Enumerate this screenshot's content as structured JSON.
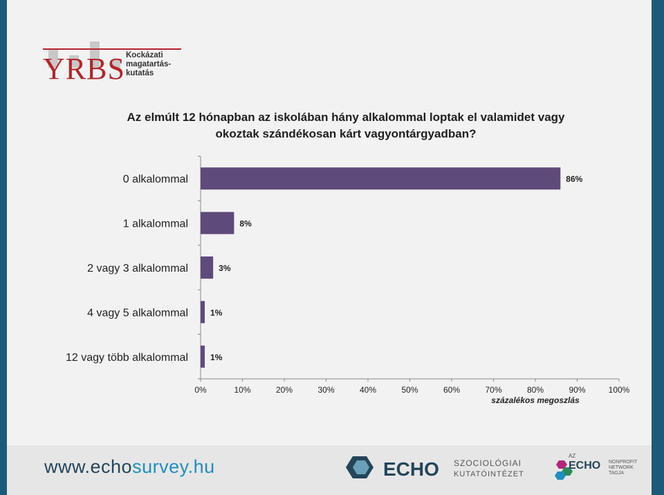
{
  "header": {
    "logo_text": "YRBS",
    "logo_subtitle": "Kockázati magatartás-kutatás"
  },
  "chart_data": {
    "type": "bar",
    "orientation": "horizontal",
    "title": "Az elmúlt 12 hónapban az iskolában hány alkalommal loptak el valamidet vagy okoztak szándékosan kárt vagyontárgyadban?",
    "categories": [
      "0 alkalommal",
      "1 alkalommal",
      "2 vagy 3 alkalommal",
      "4 vagy 5 alkalommal",
      "12 vagy több alkalommal"
    ],
    "values": [
      86,
      8,
      3,
      1,
      1
    ],
    "data_labels": [
      "86%",
      "8%",
      "3%",
      "1%",
      "1%"
    ],
    "xlabel": "százalékos megoszlás",
    "xlim": [
      0,
      100
    ],
    "xticks": [
      "0%",
      "10%",
      "20%",
      "30%",
      "40%",
      "50%",
      "60%",
      "70%",
      "80%",
      "90%",
      "100%"
    ],
    "bar_color": "#5f4a7c",
    "grid": false
  },
  "footer": {
    "website_prefix": "www.echo",
    "website_suffix": "survey.hu",
    "echo_logo_word": "ECHO",
    "echo_logo_sub1": "SZOCIOLÓGIAI",
    "echo_logo_sub2": "KUTATÓINTÉZET",
    "nonprofit_az": "AZ",
    "nonprofit_word": "ECHO",
    "nonprofit_sub1": "NONPROFIT",
    "nonprofit_sub2": "NETWORK",
    "nonprofit_sub3": "TAGJA"
  }
}
